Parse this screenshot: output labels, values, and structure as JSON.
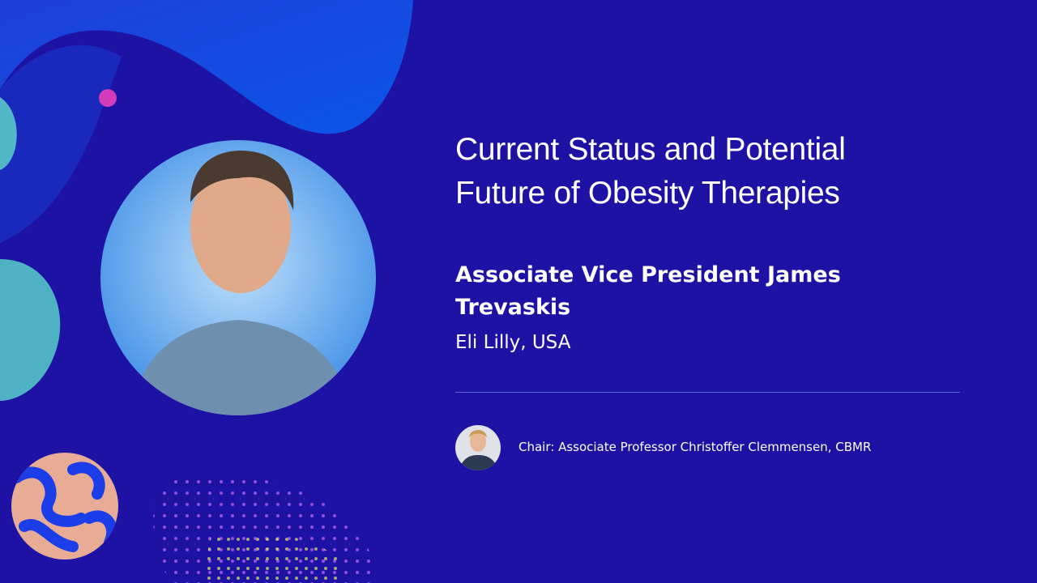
{
  "talk": {
    "title_lines": [
      "Current Status and Potential",
      "Future of Obesity Therapies"
    ],
    "speaker_lines": [
      "Associate Vice President James",
      "Trevaskis"
    ],
    "affiliation": "Eli Lilly, USA",
    "chair": "Chair: Associate Professor Christoffer Clemmensen, CBMR"
  }
}
